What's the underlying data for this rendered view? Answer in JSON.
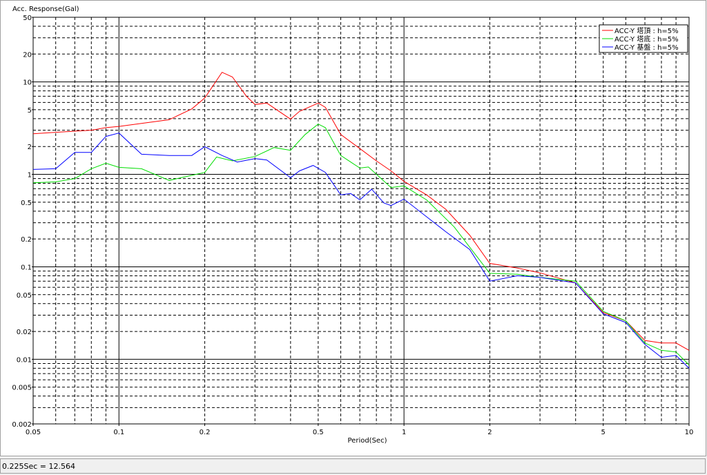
{
  "chart_data": {
    "type": "line",
    "title": "Acc. Response(Gal)",
    "x_label": "Period(Sec)",
    "log_x": true,
    "log_y": true,
    "xlim": [
      0.05,
      10
    ],
    "ylim": [
      0.002,
      50
    ],
    "xticks": [
      0.05,
      0.1,
      0.2,
      0.5,
      1,
      2,
      5,
      10
    ],
    "yticks": [
      0.002,
      0.005,
      0.01,
      0.02,
      0.05,
      0.1,
      0.2,
      0.5,
      1,
      2,
      5,
      10,
      20,
      50
    ],
    "grid_x_solid": [
      0.1,
      1
    ],
    "grid_x_dashed": [
      0.06,
      0.07,
      0.08,
      0.09,
      0.2,
      0.3,
      0.4,
      0.5,
      0.6,
      0.7,
      0.8,
      0.9,
      2,
      3,
      4,
      5,
      6,
      7,
      8,
      9
    ],
    "grid_y_solid": [
      0.01,
      0.1,
      1,
      10
    ],
    "grid_y_dashed": [
      0.003,
      0.004,
      0.005,
      0.006,
      0.007,
      0.008,
      0.009,
      0.02,
      0.03,
      0.04,
      0.05,
      0.06,
      0.07,
      0.08,
      0.09,
      0.2,
      0.3,
      0.4,
      0.5,
      0.6,
      0.7,
      0.8,
      0.9,
      2,
      3,
      4,
      5,
      6,
      7,
      8,
      9,
      20,
      30,
      40
    ],
    "legend": "top-right",
    "series": [
      {
        "name": "ACC-Y 塔頂 : h=5%",
        "color": "#ff0000",
        "x": [
          0.05,
          0.06,
          0.08,
          0.09,
          0.1,
          0.15,
          0.18,
          0.2,
          0.23,
          0.25,
          0.28,
          0.3,
          0.33,
          0.4,
          0.43,
          0.5,
          0.53,
          0.6,
          0.7,
          0.8,
          0.9,
          1,
          1.2,
          1.4,
          1.7,
          2,
          2.5,
          3,
          4,
          5,
          6,
          7,
          8,
          9,
          10
        ],
        "values": [
          2.75,
          2.85,
          3.0,
          3.2,
          3.3,
          3.9,
          5.1,
          6.7,
          12.7,
          11.3,
          7.0,
          5.7,
          5.9,
          3.95,
          4.8,
          5.9,
          5.3,
          2.7,
          1.9,
          1.4,
          1.09,
          0.84,
          0.6,
          0.42,
          0.22,
          0.109,
          0.097,
          0.086,
          0.067,
          0.032,
          0.026,
          0.016,
          0.015,
          0.015,
          0.0125
        ]
      },
      {
        "name": "ACC-Y 塔底 : h=5%",
        "color": "#00dd00",
        "x": [
          0.05,
          0.06,
          0.07,
          0.08,
          0.09,
          0.1,
          0.12,
          0.15,
          0.2,
          0.22,
          0.25,
          0.3,
          0.35,
          0.4,
          0.45,
          0.5,
          0.53,
          0.6,
          0.7,
          0.75,
          0.9,
          1,
          1.2,
          1.5,
          2,
          2.5,
          3,
          4,
          5,
          6,
          7,
          8,
          9,
          10
        ],
        "values": [
          0.81,
          0.83,
          0.9,
          1.15,
          1.32,
          1.19,
          1.15,
          0.86,
          1.05,
          1.54,
          1.4,
          1.56,
          1.95,
          1.82,
          2.7,
          3.5,
          3.2,
          1.6,
          1.17,
          1.2,
          0.72,
          0.75,
          0.53,
          0.27,
          0.085,
          0.083,
          0.077,
          0.07,
          0.033,
          0.026,
          0.015,
          0.0125,
          0.012,
          0.0087
        ]
      },
      {
        "name": "ACC-Y 基盤 : h=5%",
        "color": "#0000ff",
        "x": [
          0.05,
          0.06,
          0.07,
          0.08,
          0.09,
          0.1,
          0.12,
          0.15,
          0.18,
          0.2,
          0.23,
          0.26,
          0.3,
          0.33,
          0.4,
          0.43,
          0.48,
          0.53,
          0.6,
          0.65,
          0.7,
          0.77,
          0.85,
          0.9,
          1,
          1.4,
          1.7,
          2,
          2.5,
          3,
          4,
          5,
          6,
          7,
          8,
          9,
          10
        ],
        "values": [
          1.13,
          1.15,
          1.73,
          1.73,
          2.57,
          2.8,
          1.65,
          1.6,
          1.6,
          1.99,
          1.6,
          1.36,
          1.48,
          1.43,
          0.92,
          1.09,
          1.25,
          1.05,
          0.6,
          0.62,
          0.53,
          0.69,
          0.49,
          0.46,
          0.54,
          0.24,
          0.154,
          0.07,
          0.08,
          0.077,
          0.067,
          0.031,
          0.025,
          0.0145,
          0.0105,
          0.011,
          0.008
        ]
      }
    ]
  },
  "status_bar": {
    "text": "0.225Sec = 12.564"
  }
}
